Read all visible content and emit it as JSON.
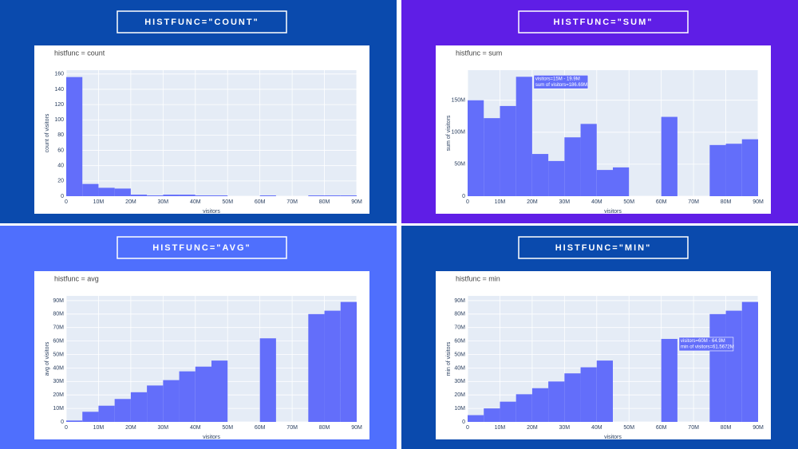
{
  "chart_data": [
    {
      "type": "histogram",
      "heading": "HISTFUNC=\"COUNT\"",
      "title": "histfunc = count",
      "x_label": "visitors",
      "y_label": "count of visitors",
      "color": "#636efa",
      "bins": [
        0,
        5000000,
        10000000,
        15000000,
        20000000,
        25000000,
        30000000,
        35000000,
        40000000,
        45000000,
        50000000,
        55000000,
        60000000,
        65000000,
        70000000,
        75000000,
        80000000,
        85000000,
        90000000
      ],
      "values": [
        156,
        16,
        11,
        10,
        2,
        1,
        2,
        2,
        1,
        1,
        0,
        0,
        1,
        0,
        0,
        1,
        1,
        1
      ],
      "xlim": [
        0,
        90000000
      ],
      "xticks": [
        0,
        {
          "value": 10000000,
          "label": "10M"
        },
        {
          "value": 20000000,
          "label": "20M"
        },
        {
          "value": 30000000,
          "label": "30M"
        },
        {
          "value": 40000000,
          "label": "40M"
        },
        {
          "value": 50000000,
          "label": "50M"
        },
        {
          "value": 60000000,
          "label": "60M"
        },
        {
          "value": 70000000,
          "label": "70M"
        },
        {
          "value": 80000000,
          "label": "80M"
        },
        {
          "value": 90000000,
          "label": "90M"
        }
      ],
      "ylim": [
        0,
        165
      ],
      "yticks": [
        0,
        20,
        40,
        60,
        80,
        100,
        120,
        140,
        160
      ]
    },
    {
      "type": "histogram",
      "heading": "HISTFUNC=\"SUM\"",
      "title": "histfunc = sum",
      "x_label": "visitors",
      "y_label": "sum of visitors",
      "color": "#636efa",
      "bins": [
        0,
        5000000,
        10000000,
        15000000,
        20000000,
        25000000,
        30000000,
        35000000,
        40000000,
        45000000,
        50000000,
        55000000,
        60000000,
        65000000,
        70000000,
        75000000,
        80000000,
        85000000,
        90000000
      ],
      "values": [
        150000000,
        122000000,
        141000000,
        186690000,
        66000000,
        55000000,
        92000000,
        113000000,
        41000000,
        45000000,
        0,
        0,
        124000000,
        0,
        0,
        80000000,
        82000000,
        89000000
      ],
      "tooltip": [
        "visitors=15M - 19.9M",
        "sum of visitors=186.69M"
      ],
      "xlim": [
        0,
        90000000
      ],
      "xticks": [
        0,
        {
          "value": 10000000,
          "label": "10M"
        },
        {
          "value": 20000000,
          "label": "20M"
        },
        {
          "value": 30000000,
          "label": "30M"
        },
        {
          "value": 40000000,
          "label": "40M"
        },
        {
          "value": 50000000,
          "label": "50M"
        },
        {
          "value": 60000000,
          "label": "60M"
        },
        {
          "value": 70000000,
          "label": "70M"
        },
        {
          "value": 80000000,
          "label": "80M"
        },
        {
          "value": 90000000,
          "label": "90M"
        }
      ],
      "ylim": [
        0,
        197000000
      ],
      "yticks": [
        0,
        {
          "value": 50000000,
          "label": "50M"
        },
        {
          "value": 100000000,
          "label": "100M"
        },
        {
          "value": 150000000,
          "label": "150M"
        }
      ]
    },
    {
      "type": "histogram",
      "heading": "HISTFUNC=\"AVG\"",
      "title": "histfunc = avg",
      "x_label": "visitors",
      "y_label": "avg of visitors",
      "color": "#636efa",
      "bins": [
        0,
        5000000,
        10000000,
        15000000,
        20000000,
        25000000,
        30000000,
        35000000,
        40000000,
        45000000,
        50000000,
        55000000,
        60000000,
        65000000,
        70000000,
        75000000,
        80000000,
        85000000,
        90000000
      ],
      "values": [
        1000000,
        7500000,
        12000000,
        17000000,
        22000000,
        27000000,
        31000000,
        37500000,
        41000000,
        45500000,
        null,
        null,
        62000000,
        null,
        null,
        80000000,
        82500000,
        89000000
      ],
      "xlim": [
        0,
        90000000
      ],
      "xticks": [
        0,
        {
          "value": 10000000,
          "label": "10M"
        },
        {
          "value": 20000000,
          "label": "20M"
        },
        {
          "value": 30000000,
          "label": "30M"
        },
        {
          "value": 40000000,
          "label": "40M"
        },
        {
          "value": 50000000,
          "label": "50M"
        },
        {
          "value": 60000000,
          "label": "60M"
        },
        {
          "value": 70000000,
          "label": "70M"
        },
        {
          "value": 80000000,
          "label": "80M"
        },
        {
          "value": 90000000,
          "label": "90M"
        }
      ],
      "ylim": [
        0,
        93500000
      ],
      "yticks": [
        0,
        {
          "value": 10000000,
          "label": "10M"
        },
        {
          "value": 20000000,
          "label": "20M"
        },
        {
          "value": 30000000,
          "label": "30M"
        },
        {
          "value": 40000000,
          "label": "40M"
        },
        {
          "value": 50000000,
          "label": "50M"
        },
        {
          "value": 60000000,
          "label": "60M"
        },
        {
          "value": 70000000,
          "label": "70M"
        },
        {
          "value": 80000000,
          "label": "80M"
        },
        {
          "value": 90000000,
          "label": "90M"
        }
      ]
    },
    {
      "type": "histogram",
      "heading": "HISTFUNC=\"MIN\"",
      "title": "histfunc = min",
      "x_label": "visitors",
      "y_label": "min of visitors",
      "color": "#636efa",
      "bins": [
        0,
        5000000,
        10000000,
        15000000,
        20000000,
        25000000,
        30000000,
        35000000,
        40000000,
        45000000,
        50000000,
        55000000,
        60000000,
        65000000,
        70000000,
        75000000,
        80000000,
        85000000,
        90000000
      ],
      "values": [
        5000000,
        10000000,
        15000000,
        20500000,
        25000000,
        30000000,
        36000000,
        40500000,
        45500000,
        null,
        null,
        null,
        61567200,
        null,
        null,
        80000000,
        82500000,
        89000000
      ],
      "tooltip": [
        "visitors=60M - 64.9M",
        "min of visitors=61.5672M"
      ],
      "xlim": [
        0,
        90000000
      ],
      "xticks": [
        0,
        {
          "value": 10000000,
          "label": "10M"
        },
        {
          "value": 20000000,
          "label": "20M"
        },
        {
          "value": 30000000,
          "label": "30M"
        },
        {
          "value": 40000000,
          "label": "40M"
        },
        {
          "value": 50000000,
          "label": "50M"
        },
        {
          "value": 60000000,
          "label": "60M"
        },
        {
          "value": 70000000,
          "label": "70M"
        },
        {
          "value": 80000000,
          "label": "80M"
        },
        {
          "value": 90000000,
          "label": "90M"
        }
      ],
      "ylim": [
        0,
        93500000
      ],
      "yticks": [
        0,
        {
          "value": 10000000,
          "label": "10M"
        },
        {
          "value": 20000000,
          "label": "20M"
        },
        {
          "value": 30000000,
          "label": "30M"
        },
        {
          "value": 40000000,
          "label": "40M"
        },
        {
          "value": 50000000,
          "label": "50M"
        },
        {
          "value": 60000000,
          "label": "60M"
        },
        {
          "value": 70000000,
          "label": "70M"
        },
        {
          "value": 80000000,
          "label": "80M"
        },
        {
          "value": 90000000,
          "label": "90M"
        }
      ]
    }
  ]
}
